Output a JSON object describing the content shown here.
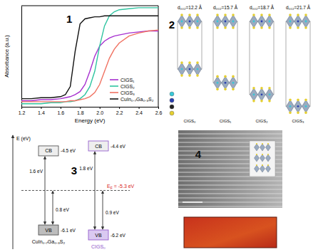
{
  "chart_data": {
    "type": "line",
    "annotations": [
      {
        "text": "1"
      }
    ],
    "x_label": "Energy (eV)",
    "y_label": "Absorbance (a.u.)",
    "x": [
      1.2,
      1.3,
      1.4,
      1.5,
      1.6,
      1.65,
      1.7,
      1.75,
      1.8,
      1.85,
      1.9,
      1.95,
      2.0,
      2.05,
      2.1,
      2.15,
      2.2,
      2.3,
      2.4,
      2.5,
      2.6
    ],
    "xlim": [
      1.2,
      2.6
    ],
    "xticks": [
      1.2,
      1.4,
      1.6,
      1.8,
      {
        "value": 2,
        "label": "2.0"
      },
      2.2,
      2.4,
      2.6
    ],
    "ylim": [
      0,
      1
    ],
    "tick_labels": "x",
    "legend": "lower right",
    "series": [
      {
        "name": "CIGS₁",
        "color": "#a62fcf",
        "values": [
          0.06,
          0.06,
          0.07,
          0.07,
          0.08,
          0.09,
          0.1,
          0.12,
          0.15,
          0.22,
          0.35,
          0.5,
          0.6,
          0.65,
          0.68,
          0.7,
          0.71,
          0.73,
          0.74,
          0.75,
          0.75
        ]
      },
      {
        "name": "CIGS₂",
        "color": "#2fc4a0",
        "values": [
          0.03,
          0.03,
          0.03,
          0.04,
          0.04,
          0.05,
          0.05,
          0.06,
          0.08,
          0.12,
          0.2,
          0.35,
          0.6,
          0.8,
          0.9,
          0.94,
          0.96,
          0.97,
          0.98,
          0.98,
          0.98
        ]
      },
      {
        "name": "CIGS₃",
        "color": "#f07262",
        "values": [
          0.05,
          0.05,
          0.05,
          0.05,
          0.05,
          0.05,
          0.06,
          0.06,
          0.07,
          0.08,
          0.1,
          0.14,
          0.22,
          0.35,
          0.48,
          0.57,
          0.63,
          0.7,
          0.73,
          0.75,
          0.76
        ]
      },
      {
        "name": "CuIn₀.₇Ga₀.₃S₂",
        "color": "#111111",
        "values": [
          0.08,
          0.08,
          0.09,
          0.09,
          0.1,
          0.12,
          0.2,
          0.55,
          0.82,
          0.87,
          0.88,
          0.89,
          0.89,
          0.9,
          0.9,
          0.9,
          0.9,
          0.9,
          0.9,
          0.9,
          0.9
        ]
      }
    ]
  },
  "structures": {
    "panel_label": "2",
    "items": [
      {
        "label": "CIGS₀",
        "d_spacing": 12.2,
        "spacing_label": "d₀₀₂=12.2 Å"
      },
      {
        "label": "CIGS₁",
        "d_spacing": 15.7,
        "spacing_label": "d₀₀₂=15.7 Å"
      },
      {
        "label": "CIGS₂",
        "d_spacing": 18.7,
        "spacing_label": "d₀₀₂=18.7 Å"
      },
      {
        "label": "CIGS₃",
        "d_spacing": 21.7,
        "spacing_label": "d₀₀₂=21.7 Å"
      }
    ]
  },
  "band_diagram": {
    "panel_label": "3",
    "axis_label": "E (eV)",
    "fermi_level": {
      "energy": -5.3,
      "symbol": "E",
      "subscript": "F",
      "text": " = -5.3 eV"
    },
    "materials": [
      {
        "name": "CuIn₀.₇Ga₀.₃S₂",
        "color": "#444444",
        "cb": {
          "label": "CB",
          "energy": -4.5,
          "energy_label": "-4.5 eV"
        },
        "vb": {
          "label": "VB",
          "energy": -6.1,
          "energy_label": "-6.1 eV"
        },
        "gap_label": "1.6 eV",
        "vb_to_fermi_label": "0.8 eV"
      },
      {
        "name": "CIGS₀",
        "color": "#8a4fc8",
        "cb": {
          "label": "CB",
          "energy": -4.4,
          "energy_label": "-4.4 eV"
        },
        "vb": {
          "label": "VB",
          "energy": -6.2,
          "energy_label": "-6.2 eV"
        },
        "gap_label": "1.8 eV",
        "vb_to_fermi_label": "0.9 eV"
      }
    ]
  },
  "tem": {
    "panel_label": "4"
  }
}
